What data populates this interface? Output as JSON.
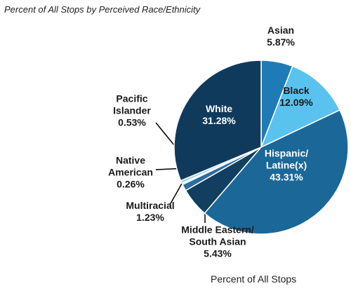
{
  "chart_data": {
    "type": "pie",
    "title": "Percent of All Stops by Perceived Race/Ethnicity",
    "caption": "Percent of All Stops",
    "categories": [
      "Asian",
      "Black",
      "Hispanic/\nLatine(x)",
      "Middle Eastern/\nSouth Asian",
      "Multiracial",
      "Native\nAmerican",
      "Pacific\nIslander",
      "White"
    ],
    "values": [
      5.87,
      12.09,
      43.31,
      5.43,
      1.23,
      0.26,
      0.53,
      31.28
    ],
    "value_labels": [
      "5.87%",
      "12.09%",
      "43.31%",
      "5.43%",
      "1.23%",
      "0.26%",
      "0.53%",
      "31.28%"
    ],
    "colors": [
      "#1f7bb6",
      "#5ac2ef",
      "#1b6898",
      "#123f60",
      "#2a6ea0",
      "#7fc4e6",
      "#9fd3ee",
      "#0f3a5c"
    ]
  }
}
